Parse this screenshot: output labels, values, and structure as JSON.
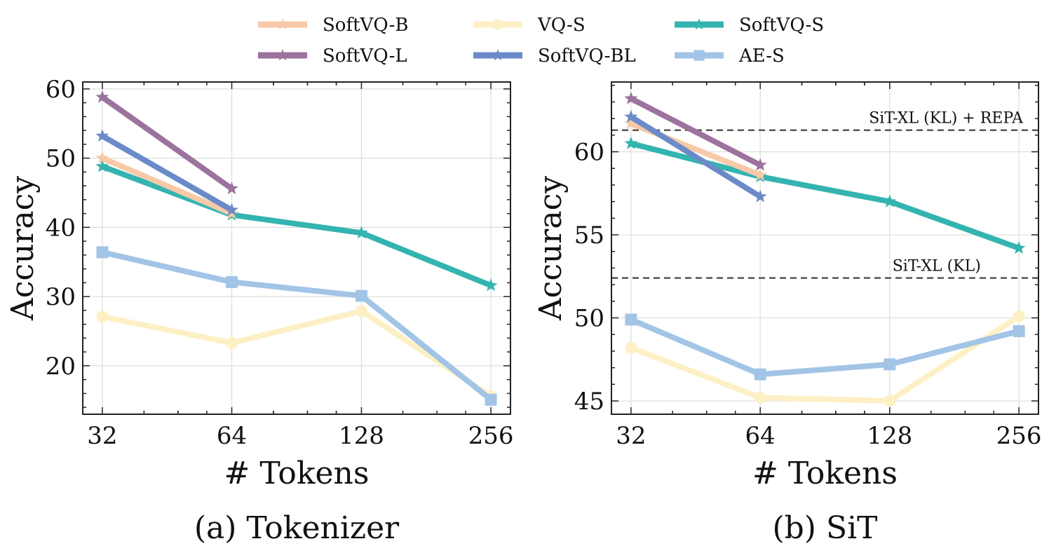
{
  "legend": {
    "items": [
      {
        "name": "SoftVQ-B",
        "color": "#f8c9a8",
        "marker": "star"
      },
      {
        "name": "SoftVQ-L",
        "color": "#9b739d",
        "marker": "star"
      },
      {
        "name": "VQ-S",
        "color": "#fdf0c5",
        "marker": "circle"
      },
      {
        "name": "SoftVQ-BL",
        "color": "#6b8bc8",
        "marker": "star"
      },
      {
        "name": "SoftVQ-S",
        "color": "#34b4b0",
        "marker": "star"
      },
      {
        "name": "AE-S",
        "color": "#a2c4e6",
        "marker": "square"
      }
    ]
  },
  "chart_data": [
    {
      "type": "line",
      "caption": "(a) Tokenizer",
      "xlabel": "# Tokens",
      "ylabel": "Accuracy",
      "x": [
        32,
        64,
        128,
        256
      ],
      "xscale": "log2",
      "ylim": [
        13,
        61
      ],
      "yticks": [
        20,
        30,
        40,
        50,
        60
      ],
      "grid": true,
      "series": [
        {
          "name": "SoftVQ-B",
          "values": [
            50,
            42,
            null,
            null
          ]
        },
        {
          "name": "SoftVQ-BL",
          "values": [
            53.2,
            42.5,
            null,
            null
          ]
        },
        {
          "name": "SoftVQ-L",
          "values": [
            58.8,
            45.6,
            null,
            null
          ]
        },
        {
          "name": "SoftVQ-S",
          "values": [
            48.8,
            41.8,
            39.2,
            31.6
          ]
        },
        {
          "name": "VQ-S",
          "values": [
            27.1,
            23.3,
            27.9,
            15.6
          ]
        },
        {
          "name": "AE-S",
          "values": [
            36.4,
            32.1,
            30.1,
            15.1
          ]
        }
      ]
    },
    {
      "type": "line",
      "caption": "(b) SiT",
      "xlabel": "# Tokens",
      "ylabel": "Accuracy",
      "x": [
        32,
        64,
        128,
        256
      ],
      "xscale": "log2",
      "ylim": [
        44.2,
        64.2
      ],
      "yticks": [
        45,
        50,
        55,
        60
      ],
      "grid": true,
      "reference_lines": [
        {
          "label": "SiT-XL (KL) + REPA",
          "value": 61.3
        },
        {
          "label": "SiT-XL (KL)",
          "value": 52.4
        }
      ],
      "series": [
        {
          "name": "SoftVQ-B",
          "values": [
            61.7,
            58.6,
            null,
            null
          ]
        },
        {
          "name": "SoftVQ-BL",
          "values": [
            62.1,
            57.3,
            null,
            null
          ]
        },
        {
          "name": "SoftVQ-L",
          "values": [
            63.2,
            59.2,
            null,
            null
          ]
        },
        {
          "name": "SoftVQ-S",
          "values": [
            60.5,
            58.5,
            57.0,
            54.2
          ]
        },
        {
          "name": "VQ-S",
          "values": [
            48.2,
            45.2,
            45.0,
            50.1
          ]
        },
        {
          "name": "AE-S",
          "values": [
            49.9,
            46.6,
            47.2,
            49.2
          ]
        }
      ]
    }
  ]
}
